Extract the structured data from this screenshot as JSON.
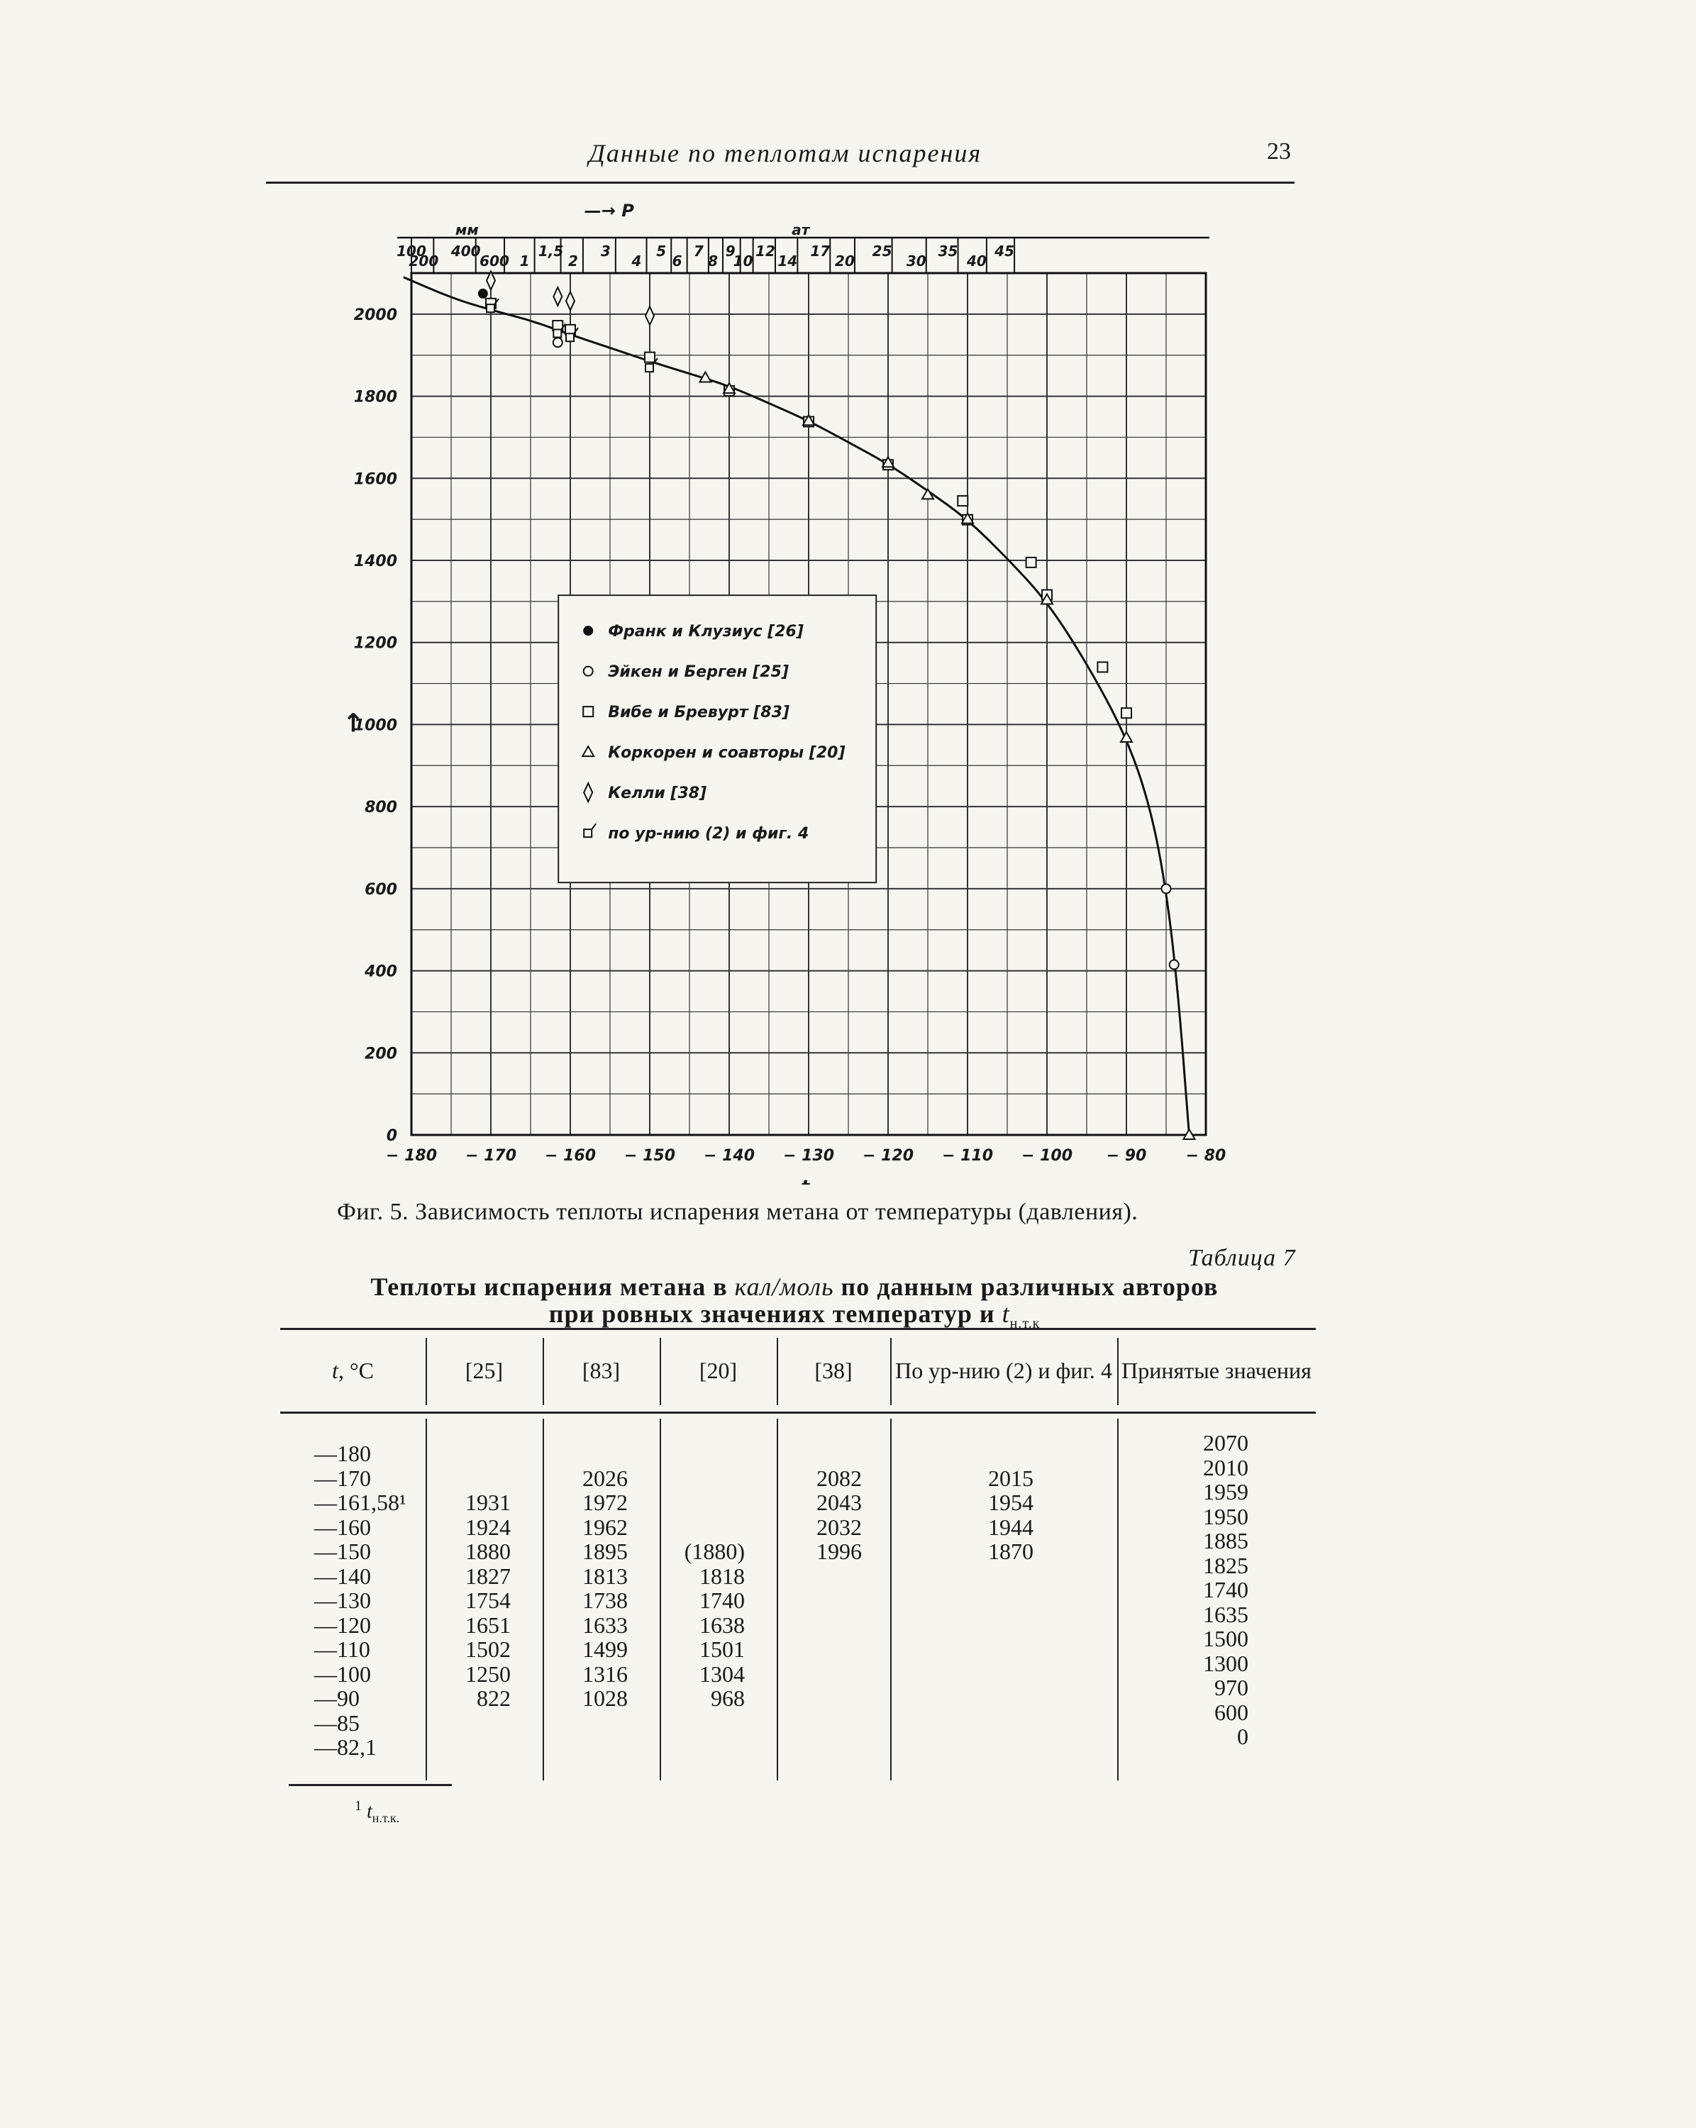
{
  "header": {
    "running_title": "Данные по теплотам испарения",
    "page_number": "23"
  },
  "chart_data": {
    "type": "scatter",
    "xlabel": "t",
    "ylabel": "↑",
    "pressure_axis_label": "P",
    "pressure_units": {
      "mm": "мм",
      "at": "ат"
    },
    "x_ticks": [
      "-180",
      "-170",
      "-160",
      "-150",
      "-140",
      "-130",
      "-120",
      "-110",
      "-100",
      "-90",
      "-80"
    ],
    "y_ticks": [
      "0",
      "200",
      "400",
      "600",
      "800",
      "1000",
      "1200",
      "1400",
      "1600",
      "1800",
      "2000"
    ],
    "xlim": [
      -180,
      -80
    ],
    "ylim": [
      0,
      2100
    ],
    "pressure_ticks_mm": [
      {
        "t": -180,
        "label": "100"
      },
      {
        "t": -177.2,
        "label": "200"
      },
      {
        "t": -171.9,
        "label": "400"
      },
      {
        "t": -168.3,
        "label": "600"
      }
    ],
    "pressure_ticks_at": [
      {
        "t": -164.5,
        "label": "1"
      },
      {
        "t": -161.2,
        "label": "1,5"
      },
      {
        "t": -158.4,
        "label": "2"
      },
      {
        "t": -154.3,
        "label": "3"
      },
      {
        "t": -150.4,
        "label": "4"
      },
      {
        "t": -147.3,
        "label": "5"
      },
      {
        "t": -145.3,
        "label": "6"
      },
      {
        "t": -142.6,
        "label": "7"
      },
      {
        "t": -140.8,
        "label": "8"
      },
      {
        "t": -138.6,
        "label": "9"
      },
      {
        "t": -137.0,
        "label": "10"
      },
      {
        "t": -134.2,
        "label": "12"
      },
      {
        "t": -131.4,
        "label": "14"
      },
      {
        "t": -127.3,
        "label": "17"
      },
      {
        "t": -124.2,
        "label": "20"
      },
      {
        "t": -119.5,
        "label": "25"
      },
      {
        "t": -115.2,
        "label": "30"
      },
      {
        "t": -111.2,
        "label": "35"
      },
      {
        "t": -107.6,
        "label": "40"
      },
      {
        "t": -104.1,
        "label": "45"
      }
    ],
    "curve": [
      {
        "t": -181,
        "q": 2090
      },
      {
        "t": -175,
        "q": 2040
      },
      {
        "t": -170,
        "q": 2010
      },
      {
        "t": -165,
        "q": 1985
      },
      {
        "t": -160,
        "q": 1950
      },
      {
        "t": -155,
        "q": 1918
      },
      {
        "t": -150,
        "q": 1885
      },
      {
        "t": -145,
        "q": 1855
      },
      {
        "t": -140,
        "q": 1825
      },
      {
        "t": -135,
        "q": 1783
      },
      {
        "t": -130,
        "q": 1740
      },
      {
        "t": -125,
        "q": 1688
      },
      {
        "t": -120,
        "q": 1635
      },
      {
        "t": -115,
        "q": 1570
      },
      {
        "t": -110,
        "q": 1500
      },
      {
        "t": -105,
        "q": 1405
      },
      {
        "t": -100,
        "q": 1300
      },
      {
        "t": -95,
        "q": 1150
      },
      {
        "t": -90,
        "q": 970
      },
      {
        "t": -87,
        "q": 800
      },
      {
        "t": -85,
        "q": 600
      },
      {
        "t": -83.5,
        "q": 350
      },
      {
        "t": -82.1,
        "q": 0
      }
    ],
    "series": [
      {
        "name": "Франк и Клузиус [26]",
        "marker": "dot",
        "points": [
          {
            "t": -171,
            "q": 2050
          }
        ]
      },
      {
        "name": "Эйкен и Берген [25]",
        "marker": "circle",
        "points": [
          {
            "t": -161.58,
            "q": 1931
          },
          {
            "t": -85,
            "q": 600
          },
          {
            "t": -84,
            "q": 415
          }
        ]
      },
      {
        "name": "Вибе и Бревурт [83]",
        "marker": "square",
        "points": [
          {
            "t": -170,
            "q": 2026
          },
          {
            "t": -161.58,
            "q": 1972
          },
          {
            "t": -160,
            "q": 1962
          },
          {
            "t": -150,
            "q": 1895
          },
          {
            "t": -140,
            "q": 1813
          },
          {
            "t": -130,
            "q": 1738
          },
          {
            "t": -120,
            "q": 1633
          },
          {
            "t": -110,
            "q": 1499
          },
          {
            "t": -100,
            "q": 1316
          },
          {
            "t": -90,
            "q": 1028
          },
          {
            "t": -102,
            "q": 1395
          },
          {
            "t": -110.6,
            "q": 1545
          },
          {
            "t": -93,
            "q": 1140
          }
        ]
      },
      {
        "name": "Коркорен и соавторы [20]",
        "marker": "triangle",
        "points": [
          {
            "t": -140,
            "q": 1818
          },
          {
            "t": -130,
            "q": 1740
          },
          {
            "t": -120,
            "q": 1638
          },
          {
            "t": -110,
            "q": 1501
          },
          {
            "t": -100,
            "q": 1304
          },
          {
            "t": -90,
            "q": 968
          },
          {
            "t": -143,
            "q": 1845
          },
          {
            "t": -115,
            "q": 1560
          },
          {
            "t": -82.1,
            "q": 0
          }
        ]
      },
      {
        "name": "Келли [38]",
        "marker": "diamond",
        "points": [
          {
            "t": -170,
            "q": 2082
          },
          {
            "t": -161.58,
            "q": 2043
          },
          {
            "t": -160,
            "q": 2032
          },
          {
            "t": -150,
            "q": 1996
          }
        ]
      },
      {
        "name": "по ур-нию (2) и фиг. 4",
        "marker": "flag",
        "points": [
          {
            "t": -170,
            "q": 2015
          },
          {
            "t": -161.58,
            "q": 1954
          },
          {
            "t": -160,
            "q": 1944
          },
          {
            "t": -150,
            "q": 1870
          }
        ]
      }
    ]
  },
  "figure_caption": "Фиг. 5. Зависимость теплоты испарения метана от температуры (давления).",
  "table": {
    "label": "Таблица 7",
    "title_part1": "Теплоты испарения метана в ",
    "title_unit": "кал/моль",
    "title_part2": " по данным различных авторов",
    "title_line2": "при ровных значениях температур и ",
    "title_tsym": "t",
    "title_tsub": "н.т.к",
    "headers": [
      "t, °C",
      "[25]",
      "[83]",
      "[20]",
      "[38]",
      "По ур-нию (2) и фиг. 4",
      "Принятые значения"
    ],
    "columns": [
      [
        "—180",
        "—170",
        "—161,58¹",
        "—160",
        "—150",
        "—140",
        "—130",
        "—120",
        "—110",
        "—100",
        "—90",
        "—85",
        "—82,1"
      ],
      [
        "",
        "",
        "1931",
        "1924",
        "1880",
        "1827",
        "1754",
        "1651",
        "1502",
        "1250",
        "822",
        "",
        ""
      ],
      [
        "",
        "2026",
        "1972",
        "1962",
        "1895",
        "1813",
        "1738",
        "1633",
        "1499",
        "1316",
        "1028",
        "",
        ""
      ],
      [
        "",
        "",
        "",
        "",
        "(1880)",
        "1818",
        "1740",
        "1638",
        "1501",
        "1304",
        "968",
        "",
        ""
      ],
      [
        "",
        "2082",
        "2043",
        "2032",
        "1996",
        "",
        "",
        "",
        "",
        "",
        "",
        "",
        ""
      ],
      [
        "",
        "2015",
        "1954",
        "1944",
        "1870",
        "",
        "",
        "",
        "",
        "",
        "",
        "",
        ""
      ],
      [
        "2070",
        "2010",
        "1959",
        "1950",
        "1885",
        "1825",
        "1740",
        "1635",
        "1500",
        "1300",
        "970",
        "600",
        "0"
      ]
    ]
  },
  "footnote": {
    "mark": "1",
    "text": "t",
    "sub": "н.т.к."
  }
}
